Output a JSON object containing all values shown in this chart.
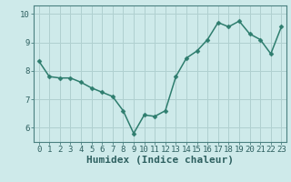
{
  "x": [
    0,
    1,
    2,
    3,
    4,
    5,
    6,
    7,
    8,
    9,
    10,
    11,
    12,
    13,
    14,
    15,
    16,
    17,
    18,
    19,
    20,
    21,
    22,
    23
  ],
  "y": [
    8.35,
    7.8,
    7.75,
    7.75,
    7.6,
    7.4,
    7.25,
    7.1,
    6.6,
    5.8,
    6.45,
    6.4,
    6.6,
    7.8,
    8.45,
    8.7,
    9.1,
    9.7,
    9.55,
    9.75,
    9.3,
    9.1,
    8.6,
    9.55
  ],
  "line_color": "#2e7d6e",
  "marker": "D",
  "marker_size": 2.5,
  "bg_color": "#ceeaea",
  "grid_color": "#b0d0d0",
  "xlabel": "Humidex (Indice chaleur)",
  "xlabel_fontsize": 8,
  "xlim": [
    -0.5,
    23.5
  ],
  "ylim": [
    5.5,
    10.3
  ],
  "yticks": [
    6,
    7,
    8,
    9,
    10
  ],
  "xticks": [
    0,
    1,
    2,
    3,
    4,
    5,
    6,
    7,
    8,
    9,
    10,
    11,
    12,
    13,
    14,
    15,
    16,
    17,
    18,
    19,
    20,
    21,
    22,
    23
  ],
  "tick_color": "#2e6060",
  "tick_fontsize": 6.5,
  "spine_color": "#4a8080",
  "line_width": 1.1
}
